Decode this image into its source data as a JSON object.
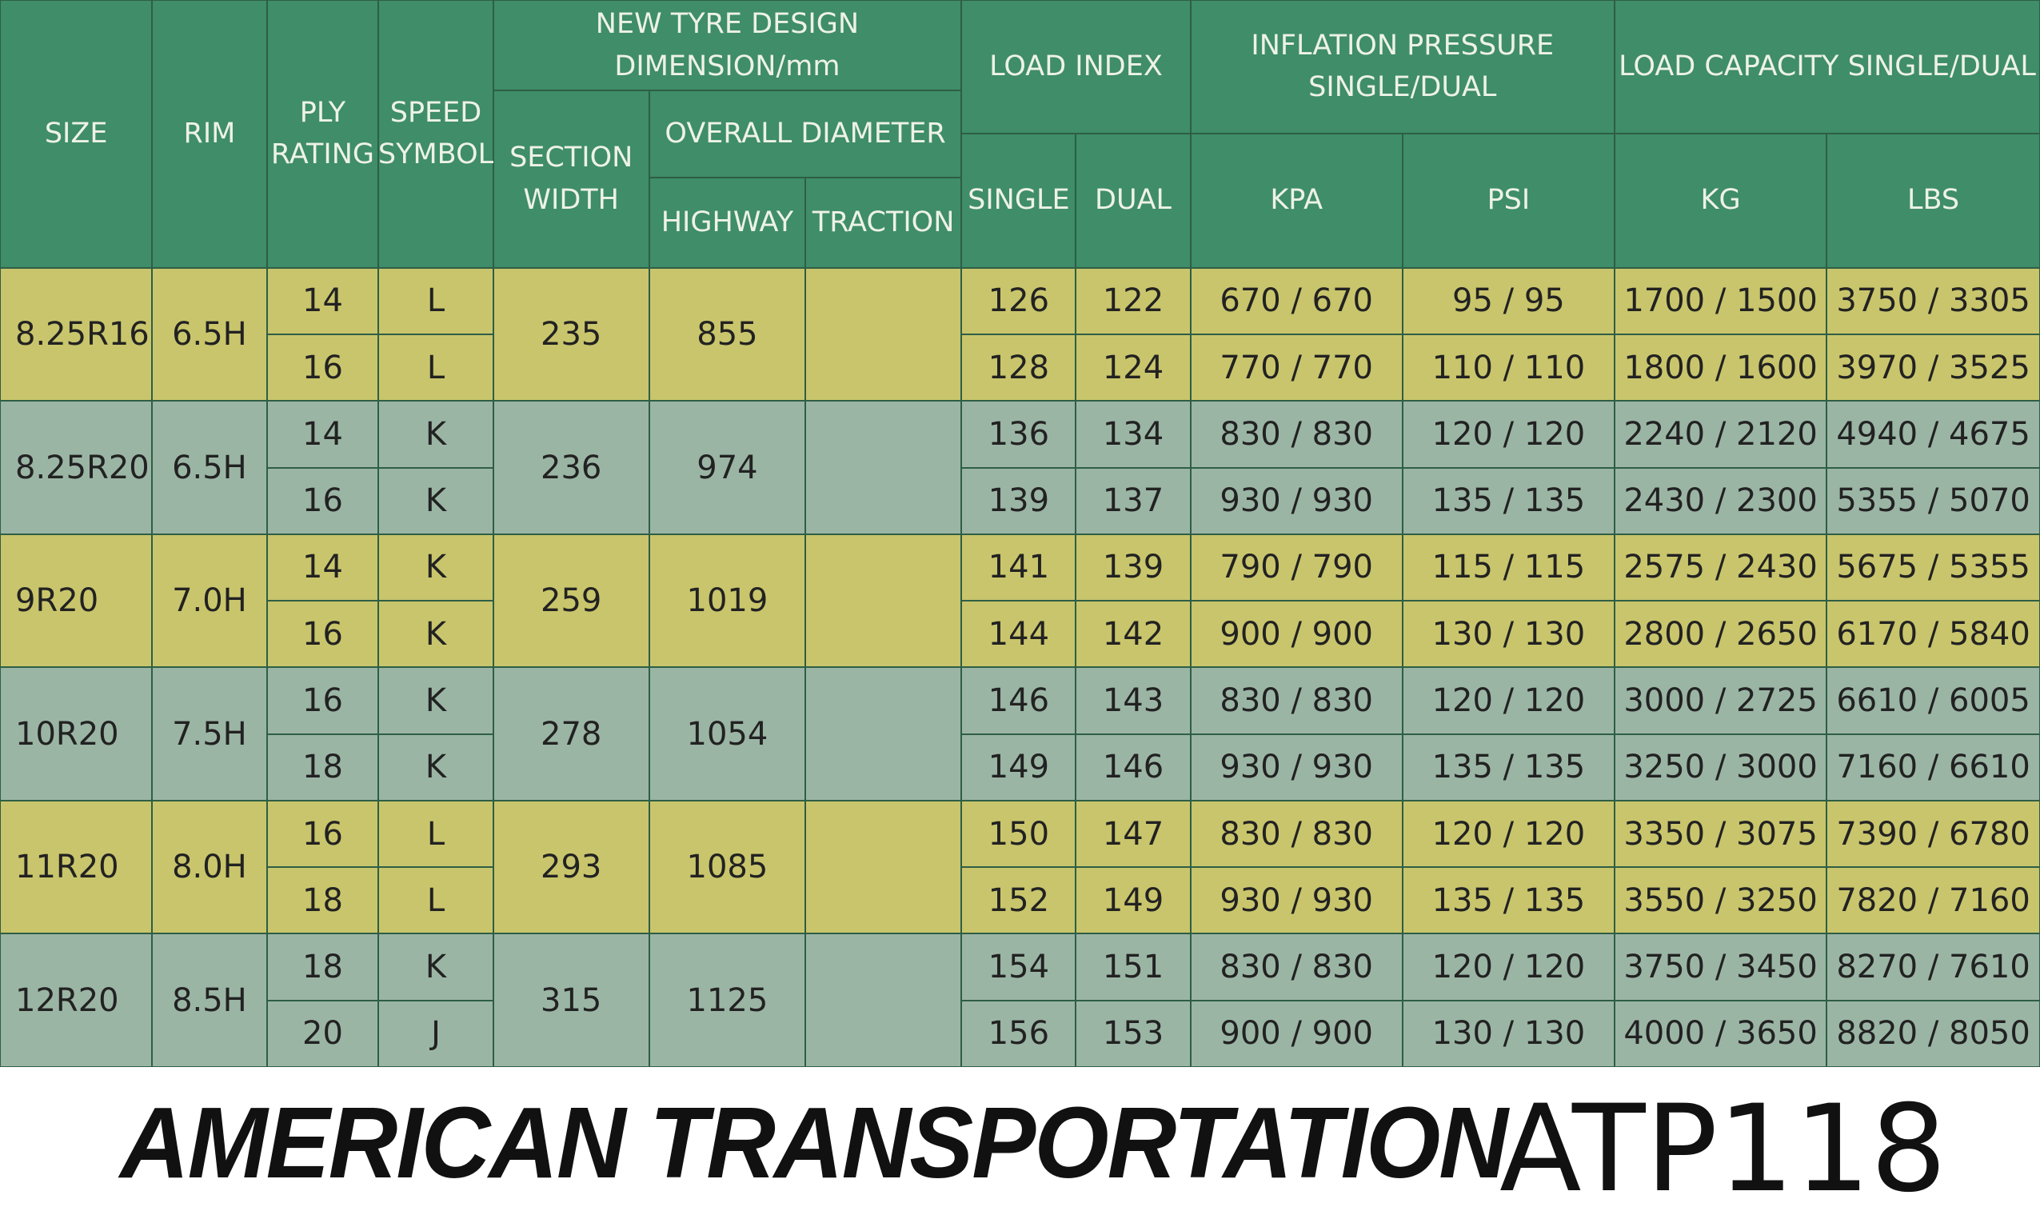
{
  "header": {
    "size": "SIZE",
    "rim": "RIM",
    "ply": "PLY\nRATING",
    "speed": "SPEED\nSYMBOL",
    "dimension": "NEW TYRE DESIGN DIMENSION/mm",
    "section_width": "SECTION\nWIDTH",
    "overall_diameter": "OVERALL DIAMETER",
    "highway": "HIGHWAY",
    "traction": "TRACTION",
    "load_index": "LOAD INDEX",
    "single": "SINGLE",
    "dual": "DUAL",
    "inflation": "INFLATION PRESSURE\nSINGLE/DUAL",
    "kpa": "KPA",
    "psi": "PSI",
    "load_capacity": "LOAD CAPACITY SINGLE/DUAL",
    "kg": "KG",
    "lbs": "LBS"
  },
  "groups": [
    {
      "size": "8.25R16",
      "rim": "6.5H",
      "section_width": "235",
      "highway": "855",
      "rows": [
        {
          "ply": "14",
          "speed": "L",
          "single": "126",
          "dual": "122",
          "kpa": "670 / 670",
          "psi": "95 / 95",
          "kg": "1700 / 1500",
          "lbs": "3750 / 3305"
        },
        {
          "ply": "16",
          "speed": "L",
          "single": "128",
          "dual": "124",
          "kpa": "770 / 770",
          "psi": "110 / 110",
          "kg": "1800 / 1600",
          "lbs": "3970 / 3525"
        }
      ]
    },
    {
      "size": "8.25R20",
      "rim": "6.5H",
      "section_width": "236",
      "highway": "974",
      "rows": [
        {
          "ply": "14",
          "speed": "K",
          "single": "136",
          "dual": "134",
          "kpa": "830 / 830",
          "psi": "120 / 120",
          "kg": "2240 / 2120",
          "lbs": "4940 / 4675"
        },
        {
          "ply": "16",
          "speed": "K",
          "single": "139",
          "dual": "137",
          "kpa": "930 / 930",
          "psi": "135 / 135",
          "kg": "2430 / 2300",
          "lbs": "5355 / 5070"
        }
      ]
    },
    {
      "size": "9R20",
      "rim": "7.0H",
      "section_width": "259",
      "highway": "1019",
      "rows": [
        {
          "ply": "14",
          "speed": "K",
          "single": "141",
          "dual": "139",
          "kpa": "790 / 790",
          "psi": "115 / 115",
          "kg": "2575 / 2430",
          "lbs": "5675 / 5355"
        },
        {
          "ply": "16",
          "speed": "K",
          "single": "144",
          "dual": "142",
          "kpa": "900 / 900",
          "psi": "130 / 130",
          "kg": "2800 / 2650",
          "lbs": "6170 / 5840"
        }
      ]
    },
    {
      "size": "10R20",
      "rim": "7.5H",
      "section_width": "278",
      "highway": "1054",
      "rows": [
        {
          "ply": "16",
          "speed": "K",
          "single": "146",
          "dual": "143",
          "kpa": "830 / 830",
          "psi": "120 / 120",
          "kg": "3000 / 2725",
          "lbs": "6610 / 6005"
        },
        {
          "ply": "18",
          "speed": "K",
          "single": "149",
          "dual": "146",
          "kpa": "930 / 930",
          "psi": "135 / 135",
          "kg": "3250 / 3000",
          "lbs": "7160 / 6610"
        }
      ]
    },
    {
      "size": "11R20",
      "rim": "8.0H",
      "section_width": "293",
      "highway": "1085",
      "rows": [
        {
          "ply": "16",
          "speed": "L",
          "single": "150",
          "dual": "147",
          "kpa": "830 / 830",
          "psi": "120 / 120",
          "kg": "3350 / 3075",
          "lbs": "7390 / 6780"
        },
        {
          "ply": "18",
          "speed": "L",
          "single": "152",
          "dual": "149",
          "kpa": "930 / 930",
          "psi": "135 / 135",
          "kg": "3550 / 3250",
          "lbs": "7820 / 7160"
        }
      ]
    },
    {
      "size": "12R20",
      "rim": "8.5H",
      "section_width": "315",
      "highway": "1125",
      "rows": [
        {
          "ply": "18",
          "speed": "K",
          "single": "154",
          "dual": "151",
          "kpa": "830 / 830",
          "psi": "120 / 120",
          "kg": "3750 / 3450",
          "lbs": "8270 / 7610"
        },
        {
          "ply": "20",
          "speed": "J",
          "single": "156",
          "dual": "153",
          "kpa": "900 / 900",
          "psi": "130 / 130",
          "kg": "4000 / 3650",
          "lbs": "8820 / 8050"
        }
      ]
    }
  ],
  "footer": {
    "brand": "AMERICAN TRANSPORTATION",
    "model": "ATP118"
  }
}
